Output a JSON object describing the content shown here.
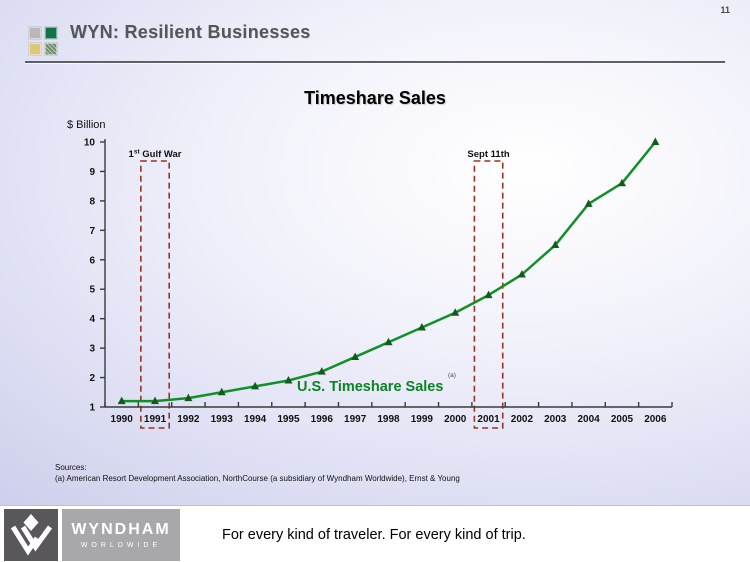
{
  "page_number": "11",
  "header": {
    "title": "WYN:  Resilient Businesses",
    "logo_squares": [
      "#b7b7bb",
      "#127349",
      "#dcc87c",
      "#809d7e"
    ]
  },
  "chart_data": {
    "type": "line",
    "title": "Timeshare Sales",
    "ylabel": "$ Billion",
    "xlabel": "",
    "categories": [
      "1990",
      "1991",
      "1992",
      "1993",
      "1994",
      "1995",
      "1996",
      "1997",
      "1998",
      "1999",
      "2000",
      "2001",
      "2002",
      "2003",
      "2004",
      "2005",
      "2006"
    ],
    "series": [
      {
        "name": "U.S. Timeshare Sales",
        "values": [
          1.2,
          1.2,
          1.3,
          1.5,
          1.7,
          1.9,
          2.2,
          2.7,
          3.2,
          3.7,
          4.2,
          4.8,
          5.5,
          6.5,
          7.9,
          8.6,
          10.0
        ]
      }
    ],
    "series_label_note": "(a)",
    "ylim": [
      1,
      10
    ],
    "yticks": [
      1,
      2,
      3,
      4,
      5,
      6,
      7,
      8,
      9,
      10
    ],
    "grid": false,
    "legend_position": "inline-on-plot",
    "annotations": [
      {
        "category": "1991",
        "label": "1st Gulf War",
        "label_parts": [
          {
            "t": "1"
          },
          {
            "t": "st",
            "sup": true
          },
          {
            "t": " Gulf War"
          }
        ]
      },
      {
        "category": "2001",
        "label": "Sept 11th",
        "label_parts": [
          {
            "t": "Sept 11th"
          }
        ]
      }
    ],
    "colors": {
      "line": "#0f9128",
      "marker": "#14591d",
      "annotation_box": "#993322",
      "axis": "#3a3a3a",
      "label": "#0c8326"
    }
  },
  "sources": {
    "heading": "Sources:",
    "line": "(a)  American Resort Development Association, NorthCourse (a subsidiary of Wyndham Worldwide), Ernst & Young"
  },
  "footer": {
    "brand": "WYNDHAM",
    "brand_sub": "WORLDWIDE",
    "tagline": "For every kind of traveler. For every kind of trip."
  }
}
